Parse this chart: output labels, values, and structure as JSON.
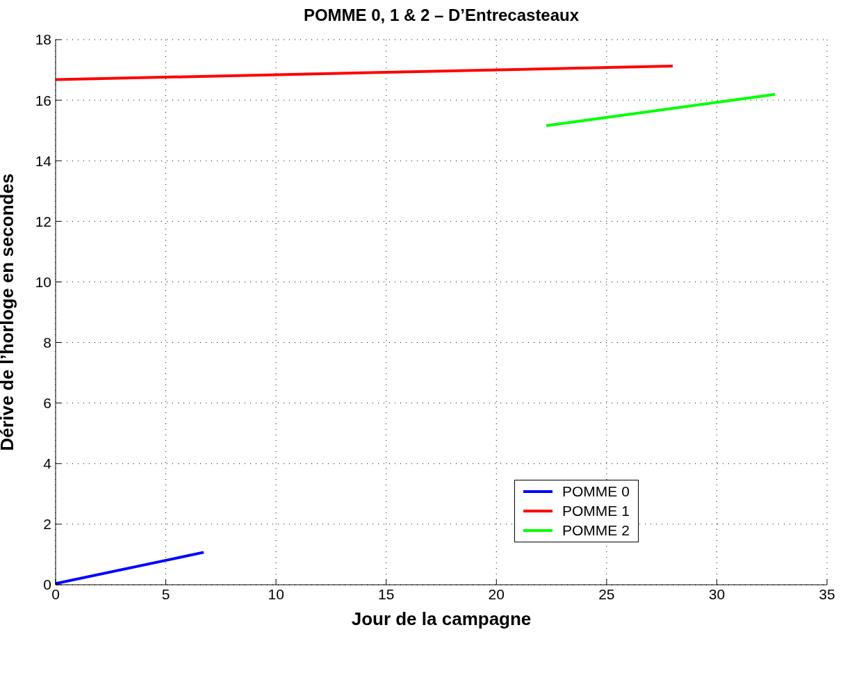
{
  "chart_data": {
    "type": "line",
    "title": "POMME 0, 1 & 2 – D’Entrecasteaux",
    "xlabel": "Jour de la campagne",
    "ylabel": "Dérive de l’horloge en secondes",
    "series": [
      {
        "name": "POMME 0",
        "color": "#0000ff",
        "x": [
          0,
          6.72
        ],
        "values": [
          0.04,
          1.07
        ]
      },
      {
        "name": "POMME 1",
        "color": "#ff0000",
        "x": [
          0,
          28.0
        ],
        "values": [
          16.68,
          17.13
        ]
      },
      {
        "name": "POMME 2",
        "color": "#00ff00",
        "x": [
          22.26,
          32.64
        ],
        "values": [
          15.16,
          16.19
        ]
      }
    ],
    "xlim": [
      0,
      35
    ],
    "xticks": [
      0,
      5,
      10,
      15,
      20,
      25,
      30,
      35
    ],
    "ylim": [
      0,
      18
    ],
    "yticks": [
      0,
      2,
      4,
      6,
      8,
      10,
      12,
      14,
      16,
      18
    ],
    "grid": true,
    "legend": "bottom right",
    "line_style": "solid",
    "marker": "none"
  }
}
